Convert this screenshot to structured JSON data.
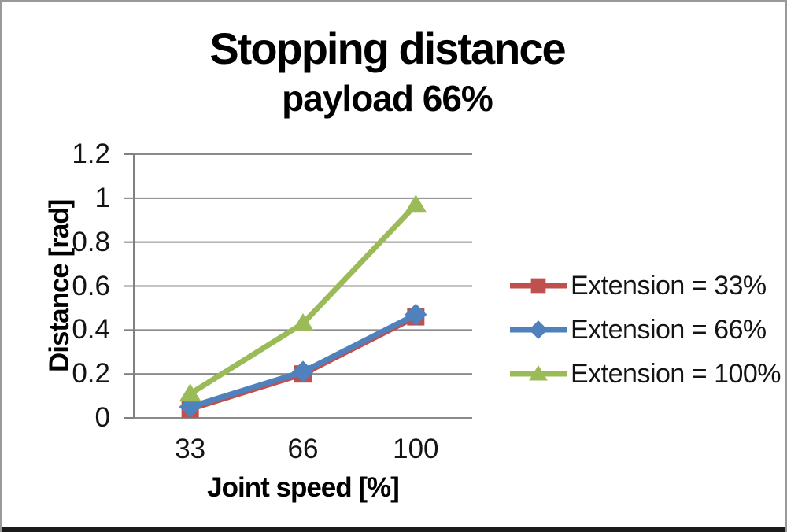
{
  "frame": {
    "background": "#ffffff",
    "border_color": "#999999",
    "bottom_bar_color": "#1b1b1b"
  },
  "chart_data": {
    "type": "line",
    "title": "Stopping distance",
    "subtitle": "payload 66%",
    "xlabel": "Joint speed [%]",
    "ylabel": "Distance [rad]",
    "categories": [
      "33",
      "66",
      "100"
    ],
    "series": [
      {
        "name": "Extension = 33%",
        "color": "#c0504d",
        "marker": "square",
        "values": [
          0.04,
          0.2,
          0.46
        ]
      },
      {
        "name": "Extension = 66%",
        "color": "#4f81bd",
        "marker": "diamond",
        "values": [
          0.05,
          0.21,
          0.47
        ]
      },
      {
        "name": "Extension = 100%",
        "color": "#9bbb59",
        "marker": "triangle",
        "values": [
          0.11,
          0.43,
          0.97
        ]
      }
    ],
    "ylim": [
      0,
      1.2
    ],
    "y_tick_step": 0.2,
    "y_ticks": [
      "0",
      "0.2",
      "0.4",
      "0.6",
      "0.8",
      "1",
      "1.2"
    ],
    "grid": true,
    "gridline_color": "#8a8a8a",
    "axis_color": "#808080",
    "text_color": "#141414",
    "legend_position": "right"
  }
}
